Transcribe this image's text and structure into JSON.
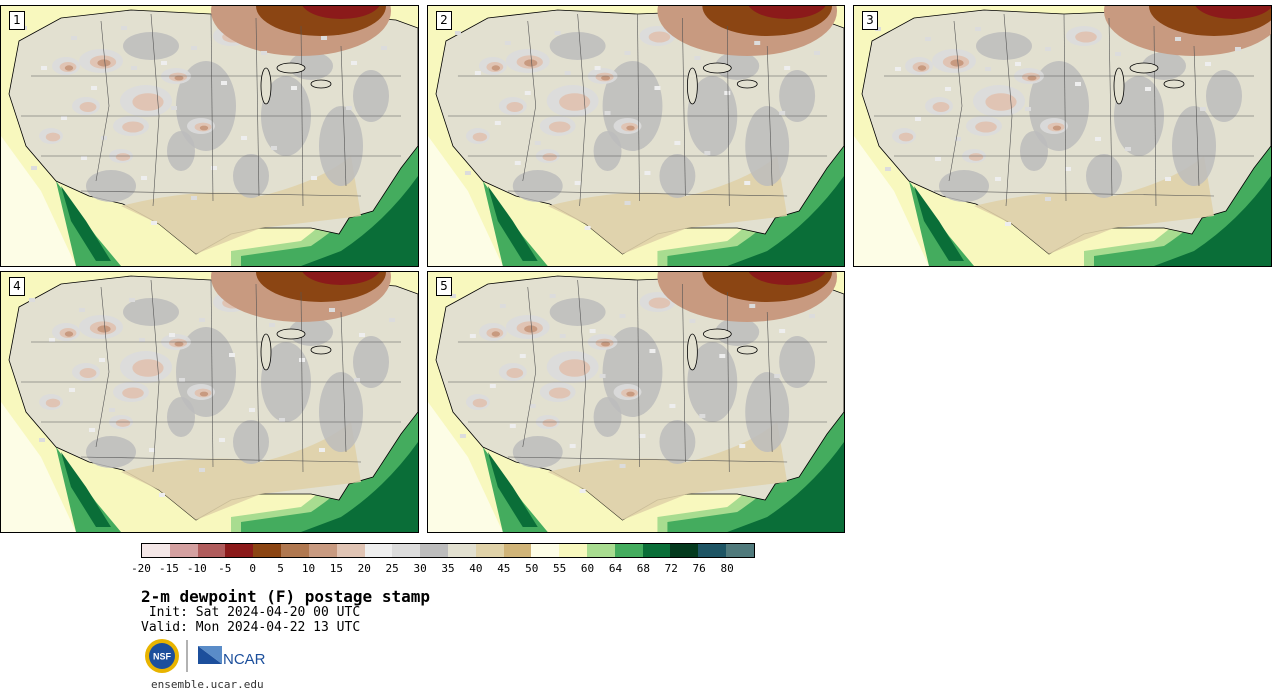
{
  "panels": [
    {
      "label": "1"
    },
    {
      "label": "2"
    },
    {
      "label": "3"
    },
    {
      "label": "4"
    },
    {
      "label": "5"
    }
  ],
  "colorbar": {
    "colors": [
      "#f4e7e7",
      "#d4a0a0",
      "#b05c5c",
      "#8b1a1a",
      "#8b4513",
      "#b07850",
      "#c89a80",
      "#e0c4b4",
      "#eeeeee",
      "#dcdcdc",
      "#bcbcbc",
      "#e2e0d0",
      "#e0d2a8",
      "#d0b478",
      "#fdfde6",
      "#f8f8be",
      "#a8dc90",
      "#44ac5e",
      "#0a6e38",
      "#043a1e",
      "#1e5564",
      "#507a7c"
    ],
    "ticks": [
      "-20",
      "-15",
      "-10",
      "-5",
      "0",
      "5",
      "10",
      "15",
      "20",
      "25",
      "30",
      "35",
      "40",
      "45",
      "50",
      "55",
      "60",
      "64",
      "68",
      "72",
      "76",
      "80"
    ]
  },
  "title": "2-m dewpoint (F) postage stamp",
  "init": " Init: Sat 2024-04-20 00 UTC",
  "valid": "Valid: Mon 2024-04-22 13 UTC",
  "logos": {
    "nsf": "NSF",
    "ncar": "NCAR"
  },
  "url": "ensemble.ucar.edu"
}
